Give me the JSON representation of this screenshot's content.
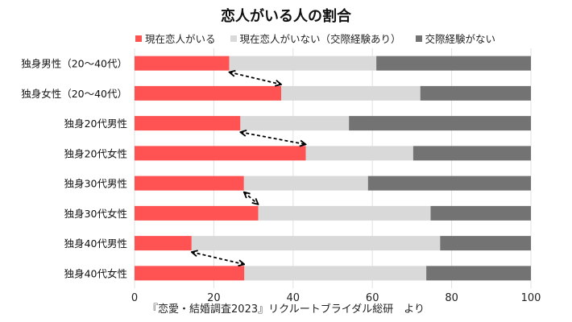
{
  "chart_data": {
    "type": "bar",
    "orientation": "horizontal",
    "stacked": true,
    "title": "恋人がいる人の割合",
    "categories": [
      "独身男性（20〜40代）",
      "独身女性（20〜40代）",
      "独身20代男性",
      "独身20代女性",
      "独身30代男性",
      "独身30代女性",
      "独身40代男性",
      "独身40代女性"
    ],
    "series": [
      {
        "name": "現在恋人がいる",
        "color": "#ff5252",
        "values": [
          23.9,
          37.0,
          26.7,
          43.2,
          27.6,
          31.2,
          14.4,
          27.7
        ]
      },
      {
        "name": "現在恋人がいない（交際経験あり）",
        "color": "#d9d9d9",
        "values": [
          37.1,
          35.1,
          27.4,
          27.1,
          31.3,
          43.5,
          62.7,
          45.9
        ]
      },
      {
        "name": "交際経験がない",
        "color": "#737373",
        "values": [
          39.0,
          27.9,
          45.9,
          29.7,
          41.1,
          25.3,
          22.9,
          26.4
        ]
      }
    ],
    "xlim": [
      0,
      100
    ],
    "xticks": [
      "0",
      "20",
      "40",
      "60",
      "80",
      "100"
    ],
    "grid": true,
    "legend": "top",
    "annotations": "dashed double arrows comparing male vs female pairs",
    "source": "『恋愛・結婚調査2023』リクルートブライダル総研　より"
  }
}
